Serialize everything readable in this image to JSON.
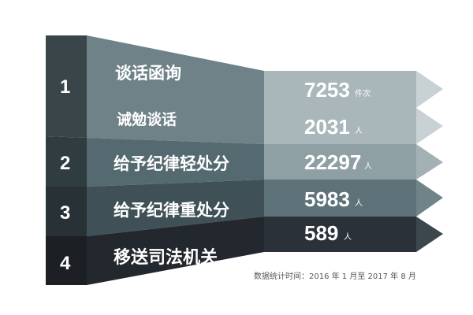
{
  "rows": [
    {
      "index": "1",
      "label": "谈话函询",
      "value": "7253",
      "unit": "件次"
    },
    {
      "index": "",
      "label": "诫勉谈话",
      "value": "2031",
      "unit": "人"
    },
    {
      "index": "2",
      "label": "给予纪律轻处分",
      "value": "22297",
      "unit": "人"
    },
    {
      "index": "3",
      "label": "给予纪律重处分",
      "value": "5983",
      "unit": "人"
    },
    {
      "index": "4",
      "label": "移送司法机关",
      "value": "589",
      "unit": "人"
    }
  ],
  "note": "数据统计时间：2016 年 1 月至 2017 年 8 月",
  "colors": {
    "band1": "#6e8287",
    "band2": "#556a70",
    "band3": "#3f5157",
    "band4": "#23272e"
  }
}
